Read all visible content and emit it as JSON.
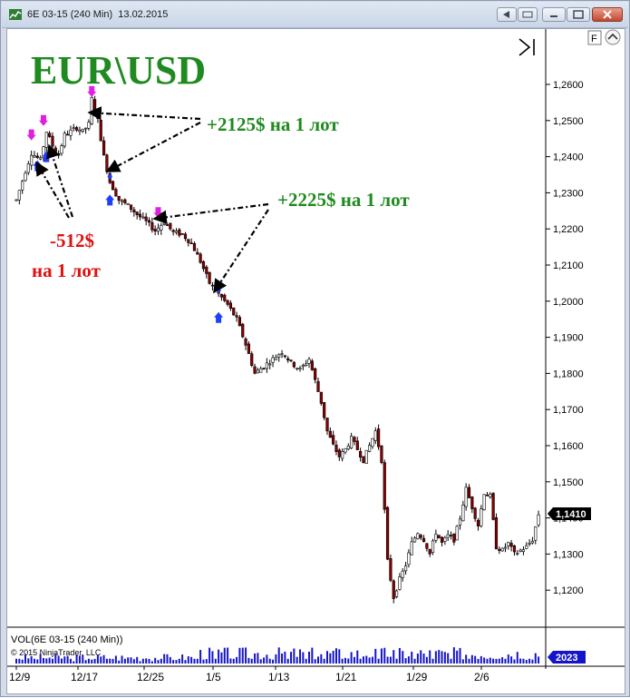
{
  "window": {
    "title": "6E 03-15 (240 Min)  13.02.2015",
    "buttons": [
      "restore-left",
      "minimize",
      "maximize",
      "close"
    ]
  },
  "toolbar": {
    "f_label": "F",
    "collapse_icon": "chevron-up-icon",
    "scroll_icon": "play-end-icon"
  },
  "chart": {
    "title": "EUR\\USD",
    "title_color": "#1f8a1f",
    "up_candle_color": "#ffffff",
    "down_candle_color": "#8b0000",
    "long_entry_color": "#1f3fff",
    "short_entry_color": "#e020e0",
    "profit_color": "#1f8a1f",
    "loss_color": "#e01010",
    "annotations": [
      {
        "text": "+2125$ на 1 лот",
        "color": "#1f8a1f"
      },
      {
        "text": "+2225$ на 1 лот",
        "color": "#1f8a1f"
      },
      {
        "text": "-512$",
        "color": "#e01010"
      },
      {
        "text": "на 1 лот",
        "color": "#e01010"
      }
    ],
    "last_price_label": "1,1410",
    "volume_label": "VOL(6E 03-15 (240 Min))",
    "copyright": "© 2015 NinjaTrader, LLC",
    "volume_value_label": "2023",
    "volume_bar_color": "#1414c8"
  },
  "chart_data": {
    "type": "candlestick",
    "title": "EUR\\USD",
    "yticks": [
      "1,2600",
      "1,2500",
      "1,2400",
      "1,2300",
      "1,2200",
      "1,2100",
      "1,2000",
      "1,1900",
      "1,1800",
      "1,1700",
      "1,1600",
      "1,1500",
      "1,1400",
      "1,1300",
      "1,1200"
    ],
    "ylim": [
      1.115,
      1.2625
    ],
    "xticks": [
      "12/9",
      "12/17",
      "12/25",
      "1/5",
      "1/13",
      "1/21",
      "1/29",
      "2/6"
    ],
    "close_path": [
      [
        0,
        1.228
      ],
      [
        3,
        1.236
      ],
      [
        5,
        1.241
      ],
      [
        8,
        1.239
      ],
      [
        10,
        1.247
      ],
      [
        12,
        1.243
      ],
      [
        14,
        1.2405
      ],
      [
        16,
        1.246
      ],
      [
        18,
        1.247
      ],
      [
        20,
        1.248
      ],
      [
        22,
        1.247
      ],
      [
        24,
        1.249
      ],
      [
        25,
        1.256
      ],
      [
        27,
        1.25
      ],
      [
        29,
        1.24
      ],
      [
        31,
        1.233
      ],
      [
        34,
        1.228
      ],
      [
        37,
        1.2265
      ],
      [
        40,
        1.224
      ],
      [
        43,
        1.222
      ],
      [
        46,
        1.2195
      ],
      [
        49,
        1.222
      ],
      [
        52,
        1.219
      ],
      [
        55,
        1.2185
      ],
      [
        58,
        1.216
      ],
      [
        61,
        1.211
      ],
      [
        64,
        1.205
      ],
      [
        67,
        1.202
      ],
      [
        70,
        1.199
      ],
      [
        73,
        1.195
      ],
      [
        76,
        1.188
      ],
      [
        79,
        1.18
      ],
      [
        82,
        1.182
      ],
      [
        85,
        1.184
      ],
      [
        88,
        1.186
      ],
      [
        91,
        1.183
      ],
      [
        94,
        1.181
      ],
      [
        97,
        1.184
      ],
      [
        99,
        1.178
      ],
      [
        101,
        1.172
      ],
      [
        103,
        1.164
      ],
      [
        105,
        1.16
      ],
      [
        107,
        1.157
      ],
      [
        109,
        1.159
      ],
      [
        111,
        1.162
      ],
      [
        113,
        1.159
      ],
      [
        115,
        1.156
      ],
      [
        117,
        1.16
      ],
      [
        119,
        1.164
      ],
      [
        121,
        1.156
      ],
      [
        123,
        1.128
      ],
      [
        125,
        1.118
      ],
      [
        127,
        1.123
      ],
      [
        129,
        1.127
      ],
      [
        131,
        1.133
      ],
      [
        133,
        1.136
      ],
      [
        135,
        1.134
      ],
      [
        137,
        1.13
      ],
      [
        139,
        1.136
      ],
      [
        141,
        1.133
      ],
      [
        143,
        1.135
      ],
      [
        145,
        1.134
      ],
      [
        147,
        1.14
      ],
      [
        149,
        1.148
      ],
      [
        151,
        1.143
      ],
      [
        153,
        1.138
      ],
      [
        155,
        1.147
      ],
      [
        157,
        1.146
      ],
      [
        159,
        1.132
      ],
      [
        161,
        1.131
      ],
      [
        163,
        1.133
      ],
      [
        165,
        1.13
      ],
      [
        167,
        1.131
      ],
      [
        169,
        1.132
      ],
      [
        171,
        1.134
      ],
      [
        173,
        1.141
      ]
    ],
    "trades": [
      {
        "type": "short_entry",
        "bar": 25,
        "price": 1.256
      },
      {
        "type": "long_exit",
        "bar": 31,
        "price": 1.2345
      },
      {
        "type": "long_entry",
        "bar": 31,
        "price": 1.23
      },
      {
        "type": "short_entry",
        "bar": 47,
        "price": 1.2225
      },
      {
        "type": "long_exit",
        "bar": 67,
        "price": 1.203
      },
      {
        "type": "long_entry",
        "bar": 67,
        "price": 1.1975
      },
      {
        "type": "short_entry",
        "bar": 5,
        "price": 1.244
      },
      {
        "type": "long_entry",
        "bar": 7,
        "price": 1.2395
      },
      {
        "type": "short_entry",
        "bar": 9,
        "price": 1.248
      },
      {
        "type": "long_entry",
        "bar": 10,
        "price": 1.242
      }
    ],
    "volume_series_label": "VOL(6E 03-15 (240 Min))",
    "last_volume": 2023
  }
}
